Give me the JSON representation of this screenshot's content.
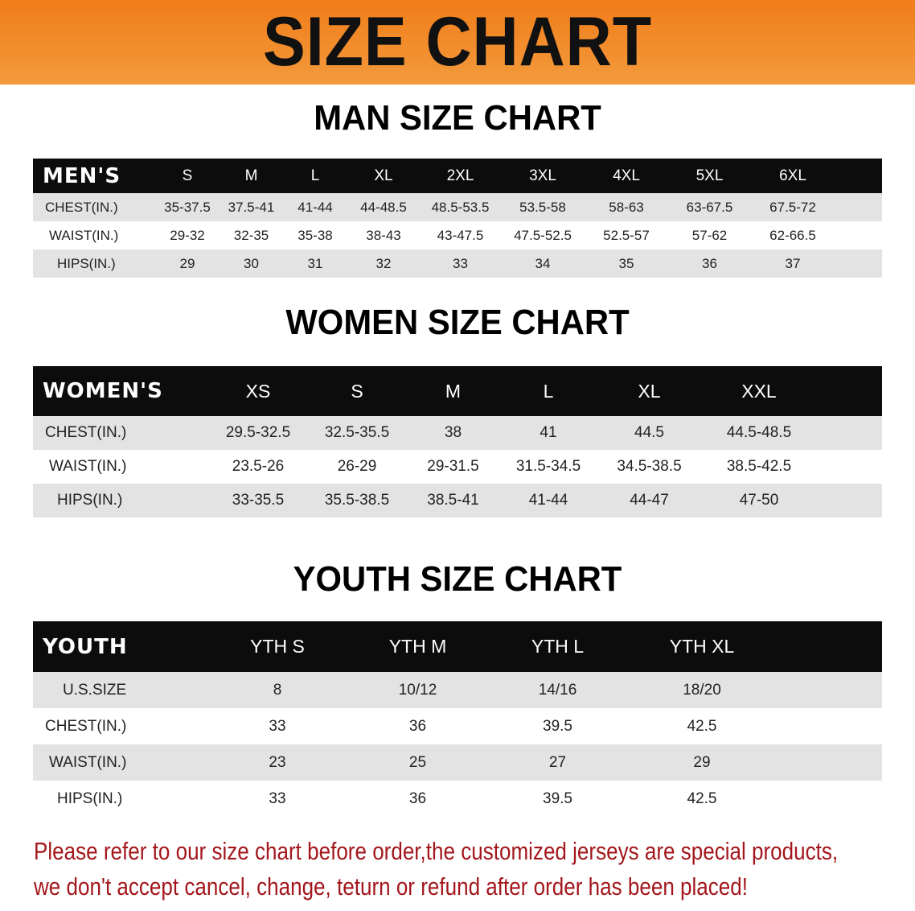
{
  "banner": {
    "title": "SIZE CHART",
    "color": "#f07d1a"
  },
  "notice_color": "#a3171c",
  "sections": {
    "men": {
      "title": "MAN SIZE CHART",
      "header": [
        "MEN'S",
        "S",
        "M",
        "L",
        "XL",
        "2XL",
        "3XL",
        "4XL",
        "5XL",
        "6XL"
      ],
      "rows": [
        [
          "CHEST(IN.)",
          "35-37.5",
          "37.5-41",
          "41-44",
          "44-48.5",
          "48.5-53.5",
          "53.5-58",
          "58-63",
          "63-67.5",
          "67.5-72"
        ],
        [
          "WAIST(IN.)",
          "29-32",
          "32-35",
          "35-38",
          "38-43",
          "43-47.5",
          "47.5-52.5",
          "52.5-57",
          "57-62",
          "62-66.5"
        ],
        [
          "HIPS(IN.)",
          "29",
          "30",
          "31",
          "32",
          "33",
          "34",
          "35",
          "36",
          "37"
        ]
      ]
    },
    "women": {
      "title": "WOMEN SIZE CHART",
      "header": [
        "WOMEN'S",
        "XS",
        "S",
        "M",
        "L",
        "XL",
        "XXL"
      ],
      "rows": [
        [
          "CHEST(IN.)",
          "29.5-32.5",
          "32.5-35.5",
          "38",
          "41",
          "44.5",
          "44.5-48.5"
        ],
        [
          "WAIST(IN.)",
          "23.5-26",
          "26-29",
          "29-31.5",
          "31.5-34.5",
          "34.5-38.5",
          "38.5-42.5"
        ],
        [
          "HIPS(IN.)",
          "33-35.5",
          "35.5-38.5",
          "38.5-41",
          "41-44",
          "44-47",
          "47-50"
        ]
      ]
    },
    "youth": {
      "title": "YOUTH SIZE CHART",
      "header": [
        "YOUTH",
        "YTH S",
        "YTH M",
        "YTH L",
        "YTH XL"
      ],
      "rows": [
        [
          "U.S.SIZE",
          "8",
          "10/12",
          "14/16",
          "18/20"
        ],
        [
          "CHEST(IN.)",
          "33",
          "36",
          "39.5",
          "42.5"
        ],
        [
          "WAIST(IN.)",
          "23",
          "25",
          "27",
          "29"
        ],
        [
          "HIPS(IN.)",
          "33",
          "36",
          "39.5",
          "42.5"
        ]
      ]
    }
  },
  "notice": {
    "line1": "Please refer to our size chart before order,the customized jerseys are special products,",
    "line2": "we don't accept cancel, change, teturn or refund after order has been placed!"
  }
}
